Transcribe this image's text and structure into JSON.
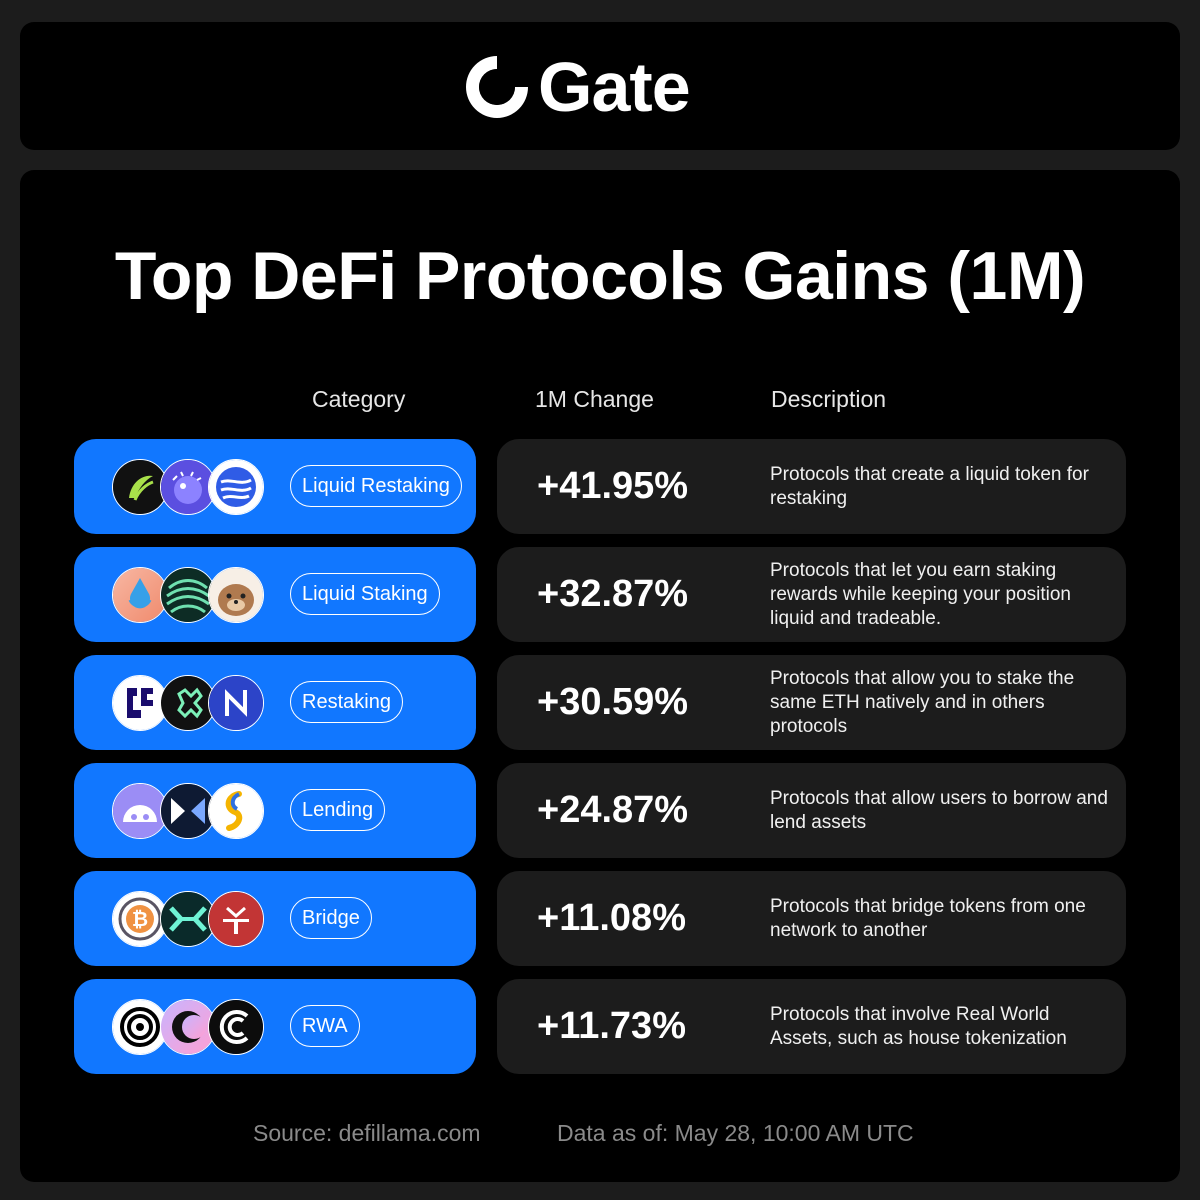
{
  "brand": {
    "name": "Gate"
  },
  "title": "Top DeFi Protocols Gains (1M)",
  "columns": {
    "category": "Category",
    "change": "1M Change",
    "description": "Description"
  },
  "rows": [
    {
      "category": "Liquid Restaking",
      "change": "+41.95%",
      "description": "Protocols that create a liquid token for restaking",
      "icons": [
        "etherfi-icon",
        "renzo-icon",
        "swell-icon"
      ]
    },
    {
      "category": "Liquid Staking",
      "change": "+32.87%",
      "description": "Protocols that let you earn staking rewards while keeping your position liquid and tradeable.",
      "icons": [
        "lido-icon",
        "jito-icon",
        "binance-staked-otter-icon"
      ]
    },
    {
      "category": "Restaking",
      "change": "+30.59%",
      "description": "Protocols that allow you to stake the same ETH natively and in others protocols",
      "icons": [
        "eigenlayer-icon",
        "symbiotic-icon",
        "karak-icon"
      ]
    },
    {
      "category": "Lending",
      "change": "+24.87%",
      "description": "Protocols that allow users to borrow and lend assets",
      "icons": [
        "aave-ghost-icon",
        "morpho-icon",
        "spark-icon"
      ]
    },
    {
      "category": "Bridge",
      "change": "+11.08%",
      "description": "Protocols that bridge tokens from one network to another",
      "icons": [
        "wbtc-icon",
        "hyperlane-icon",
        "jupiter-bridge-icon"
      ]
    },
    {
      "category": "RWA",
      "change": "+11.73%",
      "description": "Protocols that involve Real World Assets, such as house tokenization",
      "icons": [
        "ondo-icon",
        "centrifuge-icon",
        "maple-icon"
      ]
    }
  ],
  "footer": {
    "source": "Source: defillama.com",
    "date": "Data as of: May 28, 10:00 AM UTC"
  },
  "colors": {
    "accent": "#1177ff",
    "background": "#000000",
    "row_dark": "#1c1c1c"
  }
}
